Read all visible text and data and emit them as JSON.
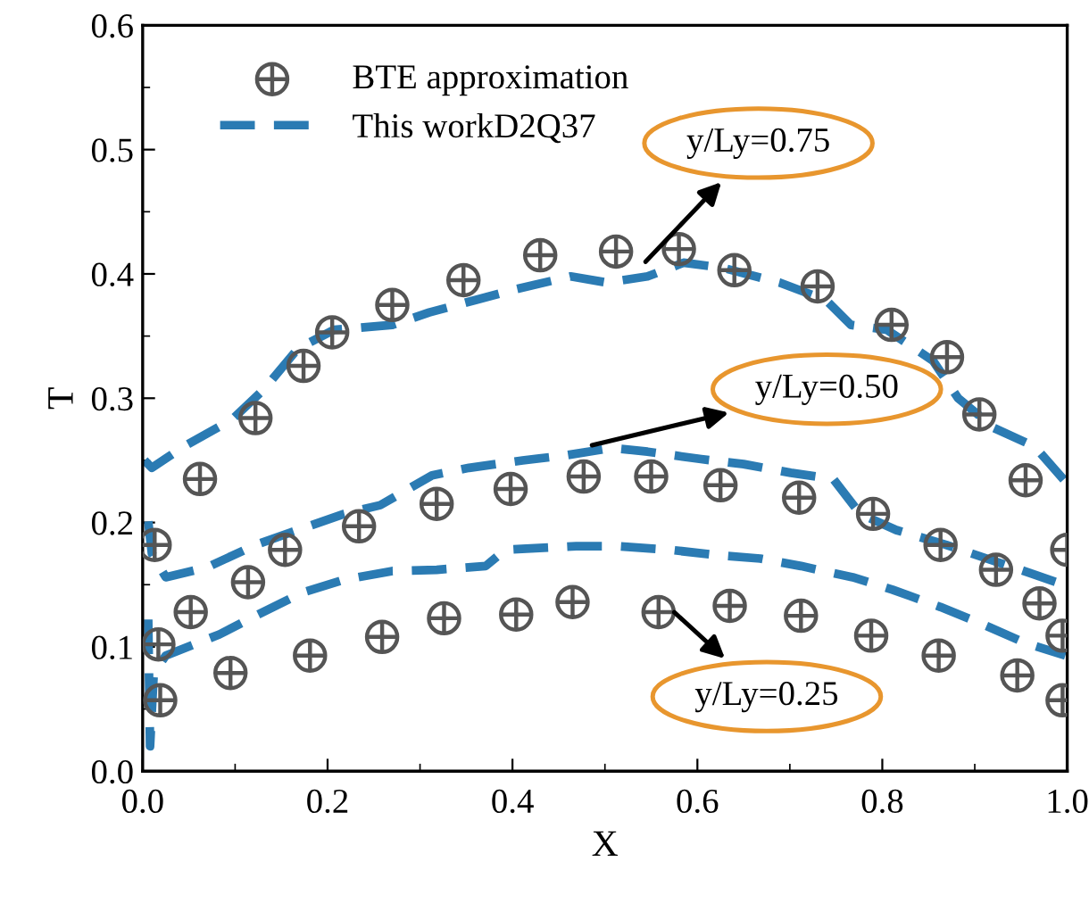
{
  "chart_data": {
    "type": "line",
    "xlabel": "X",
    "ylabel": "T",
    "xlim": [
      0,
      1
    ],
    "ylim": [
      0,
      0.6
    ],
    "xticks": [
      {
        "value": 0,
        "label": "0.0"
      },
      0.2,
      0.4,
      0.6,
      0.8,
      {
        "value": 1,
        "label": "1.0"
      }
    ],
    "yticks": [
      {
        "value": 0,
        "label": "0.0"
      },
      0.1,
      0.2,
      0.3,
      0.4,
      0.5,
      0.6
    ],
    "grid": false,
    "legend": "top left",
    "series": [
      {
        "name": "BTE approximation",
        "type": "scatter",
        "marker": "cross",
        "color": "#555555",
        "x": [
          0.013,
          0.062,
          0.122,
          0.174,
          0.205,
          0.27,
          0.347,
          0.43,
          0.512,
          0.58,
          0.64,
          0.73,
          0.81,
          0.87,
          0.905,
          0.955,
          1.0,
          0.052,
          0.114,
          0.154,
          0.234,
          0.318,
          0.398,
          0.477,
          0.55,
          0.625,
          0.71,
          0.79,
          0.863,
          0.923,
          0.97,
          0.019,
          0.017,
          0.095,
          0.181,
          0.259,
          0.326,
          0.404,
          0.465,
          0.558,
          0.635,
          0.712,
          0.788,
          0.861,
          0.946,
          0.995,
          0.995
        ],
        "values": [
          0.182,
          0.235,
          0.284,
          0.326,
          0.353,
          0.375,
          0.395,
          0.415,
          0.418,
          0.42,
          0.403,
          0.39,
          0.359,
          0.333,
          0.287,
          0.234,
          0.178,
          0.128,
          0.152,
          0.178,
          0.197,
          0.215,
          0.227,
          0.237,
          0.237,
          0.23,
          0.22,
          0.207,
          0.182,
          0.162,
          0.135,
          0.057,
          0.102,
          0.079,
          0.093,
          0.108,
          0.123,
          0.126,
          0.136,
          0.128,
          0.133,
          0.125,
          0.109,
          0.093,
          0.077,
          0.109,
          0.057
        ]
      },
      {
        "name": "This workD2Q37",
        "line_style": "dashed",
        "color": "#2b7bb3",
        "x": [
          0.002,
          0.01,
          0.044,
          0.097,
          0.131,
          0.168,
          0.207,
          0.27,
          0.31,
          0.36,
          0.405,
          0.463,
          0.502,
          0.546,
          0.585,
          0.627,
          0.689,
          0.739,
          0.766,
          0.805,
          0.855,
          0.882,
          0.921,
          0.965,
          0.998
        ],
        "values": [
          0.25,
          0.244,
          0.261,
          0.283,
          0.307,
          0.34,
          0.355,
          0.359,
          0.369,
          0.379,
          0.388,
          0.398,
          0.393,
          0.398,
          0.409,
          0.405,
          0.393,
          0.379,
          0.359,
          0.355,
          0.33,
          0.3,
          0.276,
          0.261,
          0.233
        ]
      },
      {
        "line_style": "dashed",
        "color": "#2b7bb3",
        "x": [
          0.006,
          0.01,
          0.025,
          0.07,
          0.122,
          0.16,
          0.218,
          0.257,
          0.313,
          0.353,
          0.411,
          0.457,
          0.508,
          0.546,
          0.604,
          0.65,
          0.701,
          0.747,
          0.776,
          0.815,
          0.869,
          0.913,
          0.965,
          1.0
        ],
        "values": [
          0.201,
          0.175,
          0.156,
          0.164,
          0.182,
          0.192,
          0.207,
          0.214,
          0.238,
          0.244,
          0.25,
          0.254,
          0.26,
          0.257,
          0.251,
          0.247,
          0.24,
          0.235,
          0.207,
          0.194,
          0.182,
          0.171,
          0.158,
          0.149
        ]
      },
      {
        "line_style": "dashed",
        "color": "#2b7bb3",
        "x": [
          0.006,
          0.008,
          0.012,
          0.025,
          0.083,
          0.122,
          0.174,
          0.218,
          0.27,
          0.318,
          0.371,
          0.392,
          0.415,
          0.469,
          0.512,
          0.571,
          0.618,
          0.668,
          0.712,
          0.768,
          0.811,
          0.863,
          0.903,
          0.955,
          0.998
        ],
        "values": [
          0.122,
          0.02,
          0.079,
          0.093,
          0.11,
          0.125,
          0.144,
          0.154,
          0.161,
          0.162,
          0.165,
          0.178,
          0.179,
          0.181,
          0.181,
          0.178,
          0.174,
          0.171,
          0.165,
          0.156,
          0.146,
          0.132,
          0.12,
          0.103,
          0.093
        ]
      }
    ],
    "annotations": [
      "y/Ly=0.75",
      "y/Ly=0.50",
      "y/Ly=0.25"
    ]
  }
}
